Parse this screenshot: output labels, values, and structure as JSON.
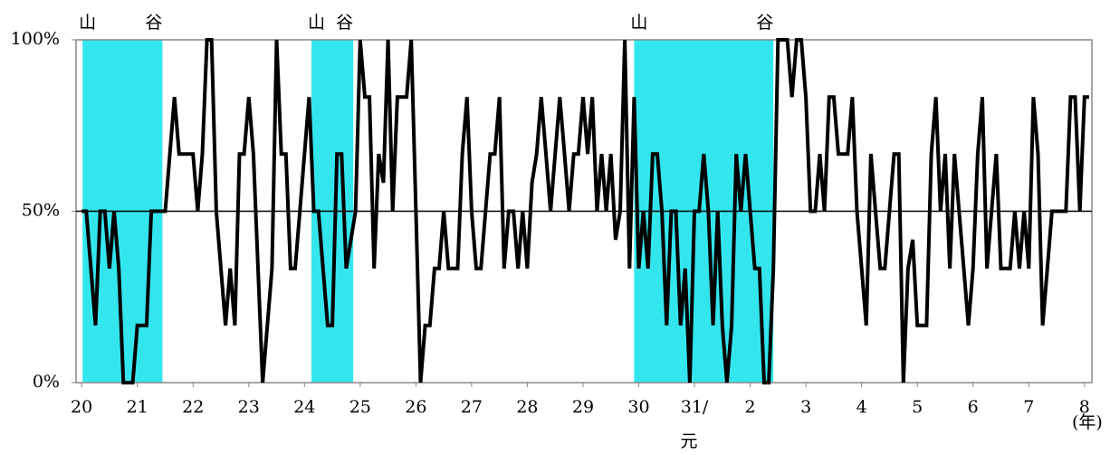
{
  "chart_data": {
    "type": "line",
    "x_unit_label": "(年)",
    "ylim": [
      0,
      100
    ],
    "yticks": [
      {
        "value": 0,
        "label": "0%"
      },
      {
        "value": 50,
        "label": "50%"
      },
      {
        "value": 100,
        "label": "100%"
      }
    ],
    "xlim": [
      -1.2,
      217.6
    ],
    "xticks": [
      {
        "value": 0,
        "label": "20"
      },
      {
        "value": 12,
        "label": "21"
      },
      {
        "value": 24,
        "label": "22"
      },
      {
        "value": 36,
        "label": "23"
      },
      {
        "value": 48,
        "label": "24"
      },
      {
        "value": 60,
        "label": "25"
      },
      {
        "value": 72,
        "label": "26"
      },
      {
        "value": 84,
        "label": "27"
      },
      {
        "value": 96,
        "label": "28"
      },
      {
        "value": 108,
        "label": "29"
      },
      {
        "value": 120,
        "label": "30"
      },
      {
        "value": 132,
        "label": "31/元"
      },
      {
        "value": 144,
        "label": "2"
      },
      {
        "value": 156,
        "label": "3"
      },
      {
        "value": 168,
        "label": "4"
      },
      {
        "value": 180,
        "label": "5"
      },
      {
        "value": 192,
        "label": "6"
      },
      {
        "value": 204,
        "label": "7"
      },
      {
        "value": 216,
        "label": "8"
      }
    ],
    "reference_line": 50,
    "recessions": [
      {
        "start": 0.2,
        "end": 17.4,
        "peak_label": "山",
        "trough_label": "谷"
      },
      {
        "start": 49.5,
        "end": 58.5,
        "peak_label": "山",
        "trough_label": "谷"
      },
      {
        "start": 119,
        "end": 149,
        "peak_label": "山",
        "trough_label": "谷"
      }
    ],
    "recession_color": "#33e6ee",
    "series": [
      {
        "color": "#000000",
        "values": [
          50,
          50,
          33.3,
          16.7,
          50,
          50,
          33.3,
          50,
          33.3,
          0,
          0,
          0,
          16.7,
          16.7,
          16.7,
          50,
          50,
          50,
          50,
          66.7,
          83.3,
          66.7,
          66.7,
          66.7,
          66.7,
          50,
          66.7,
          100,
          100,
          50,
          33.3,
          16.7,
          33.3,
          16.7,
          66.7,
          66.7,
          83.3,
          66.7,
          33.3,
          0,
          16.7,
          33.3,
          100,
          66.7,
          66.7,
          33.3,
          33.3,
          50,
          66.7,
          83.3,
          50,
          50,
          33.3,
          16.7,
          16.7,
          66.7,
          66.7,
          33.3,
          41.7,
          50,
          100,
          83.3,
          83.3,
          33.3,
          66.7,
          58.3,
          100,
          50,
          83.3,
          83.3,
          83.3,
          100,
          50,
          0,
          16.7,
          16.7,
          33.3,
          33.3,
          50,
          33.3,
          33.3,
          33.3,
          66.7,
          83.3,
          50,
          33.3,
          33.3,
          50,
          66.7,
          66.7,
          83.3,
          33.3,
          50,
          50,
          33.3,
          50,
          33.3,
          58.3,
          66.7,
          83.3,
          66.7,
          50,
          66.7,
          83.3,
          66.7,
          50,
          66.7,
          66.7,
          83.3,
          66.7,
          83.3,
          50,
          66.7,
          50,
          66.7,
          41.7,
          50,
          100,
          33.3,
          83.3,
          33.3,
          50,
          33.3,
          66.7,
          66.7,
          50,
          16.7,
          50,
          50,
          16.7,
          33.3,
          0,
          50,
          50,
          66.7,
          50,
          16.7,
          50,
          16.7,
          0,
          16.7,
          66.7,
          50,
          66.7,
          50,
          33.3,
          33.3,
          0,
          0,
          33.3,
          100,
          100,
          100,
          83.3,
          100,
          100,
          83.3,
          50,
          50,
          66.7,
          50,
          83.3,
          83.3,
          66.7,
          66.7,
          66.7,
          83.3,
          50,
          33.3,
          16.7,
          66.7,
          50,
          33.3,
          33.3,
          50,
          66.7,
          66.7,
          0,
          33.3,
          41.7,
          16.7,
          16.7,
          16.7,
          66.7,
          83.3,
          50,
          66.7,
          33.3,
          66.7,
          50,
          33.3,
          16.7,
          33.3,
          66.7,
          83.3,
          33.3,
          50,
          66.7,
          33.3,
          33.3,
          33.3,
          50,
          33.3,
          50,
          33.3,
          83.3,
          66.7,
          16.7,
          33.3,
          50,
          50,
          50,
          50,
          83.3,
          83.3,
          50,
          83.3,
          83.3
        ]
      }
    ]
  }
}
